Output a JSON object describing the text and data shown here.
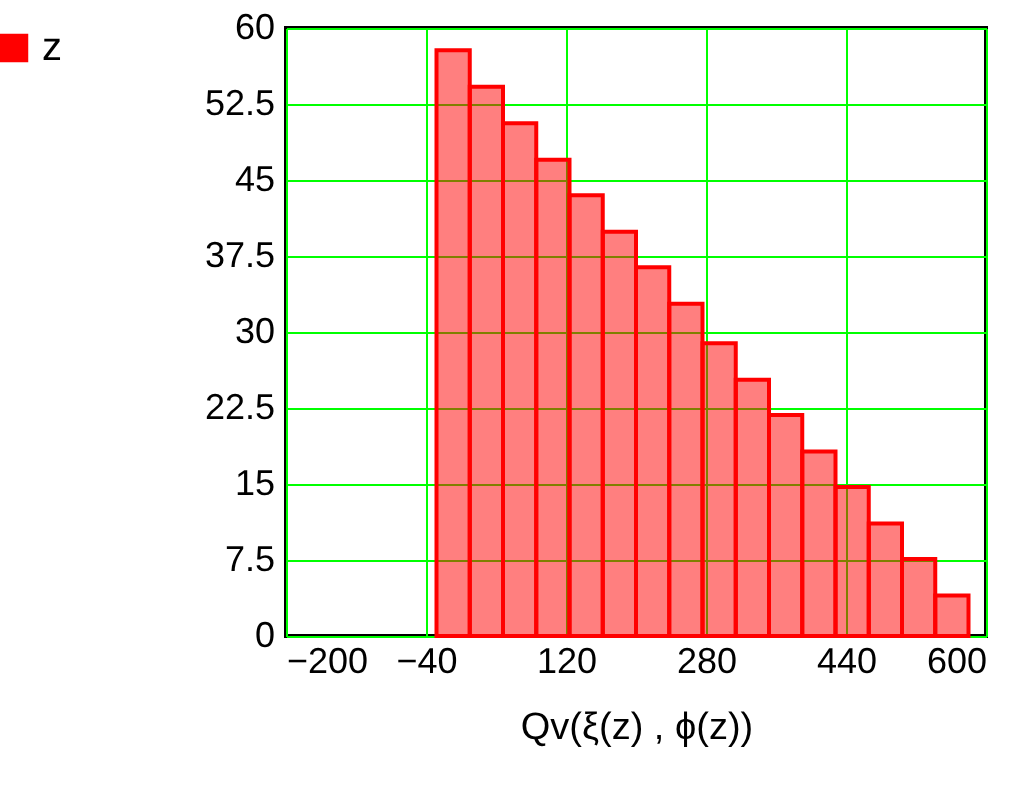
{
  "chart_data": {
    "type": "histogram",
    "xlabel": "Qv(ξ(z) , ϕ(z))",
    "bins": [
      -28,
      10,
      48,
      86,
      124,
      162,
      200,
      238,
      276,
      314,
      352,
      390,
      428,
      466,
      504,
      542,
      580
    ],
    "series": [
      {
        "name": "z",
        "color": "#ff0000",
        "values": [
          57.8,
          54.2,
          50.6,
          47.0,
          43.5,
          39.9,
          36.4,
          32.8,
          28.9,
          25.3,
          21.8,
          18.2,
          14.7,
          11.1,
          7.6,
          4.0
        ]
      }
    ],
    "xlim": [
      -200,
      600
    ],
    "xticks": [
      -200,
      -40,
      120,
      280,
      440,
      600
    ],
    "ylim": [
      0,
      60
    ],
    "yticks": [
      0,
      7.5,
      15,
      22.5,
      30,
      37.5,
      45,
      52.5,
      60
    ],
    "grid": true,
    "legend": "left"
  }
}
